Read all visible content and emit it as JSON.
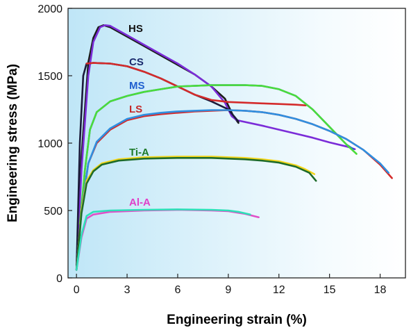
{
  "chart_data": {
    "type": "line",
    "xlabel": "Engineering strain (%)",
    "ylabel": "Engineering stress (MPa)",
    "xlim": [
      -0.5,
      19.5
    ],
    "ylim": [
      0,
      2000
    ],
    "xticks": [
      0,
      3,
      6,
      9,
      12,
      15,
      18
    ],
    "yticks": [
      0,
      500,
      1000,
      1500,
      2000
    ],
    "grid": false,
    "background": "gradient light-blue (left) to white (right)",
    "series": [
      {
        "name": "HS",
        "label_color": "#111111",
        "curves": [
          {
            "color": "#1c1c1c",
            "points": [
              [
                0,
                60
              ],
              [
                0.3,
                900
              ],
              [
                0.7,
                1600
              ],
              [
                1.0,
                1780
              ],
              [
                1.3,
                1860
              ],
              [
                1.6,
                1875
              ],
              [
                2.0,
                1860
              ],
              [
                3.0,
                1790
              ],
              [
                4.0,
                1720
              ],
              [
                5.0,
                1650
              ],
              [
                6.0,
                1580
              ],
              [
                7.0,
                1510
              ],
              [
                8.0,
                1420
              ],
              [
                8.8,
                1330
              ],
              [
                9.3,
                1200
              ],
              [
                9.6,
                1150
              ]
            ]
          },
          {
            "color": "#7b2cd8",
            "points": [
              [
                0,
                60
              ],
              [
                0.3,
                800
              ],
              [
                0.7,
                1500
              ],
              [
                1.0,
                1750
              ],
              [
                1.4,
                1860
              ],
              [
                1.7,
                1875
              ],
              [
                2.0,
                1870
              ],
              [
                3.0,
                1800
              ],
              [
                4.0,
                1730
              ],
              [
                5.0,
                1660
              ],
              [
                6.0,
                1590
              ],
              [
                7.0,
                1510
              ],
              [
                8.0,
                1420
              ],
              [
                8.8,
                1300
              ],
              [
                9.2,
                1200
              ],
              [
                9.5,
                1170
              ],
              [
                11.0,
                1130
              ],
              [
                12.0,
                1100
              ],
              [
                13.0,
                1070
              ],
              [
                14.0,
                1040
              ],
              [
                15.0,
                1005
              ],
              [
                16.0,
                975
              ],
              [
                16.5,
                955
              ]
            ]
          }
        ]
      },
      {
        "name": "CS",
        "label_color": "#1a2a6c",
        "curves": [
          {
            "color": "#1a1a3a",
            "points": [
              [
                0,
                60
              ],
              [
                0.2,
                1000
              ],
              [
                0.4,
                1500
              ],
              [
                0.6,
                1590
              ],
              [
                1.0,
                1595
              ],
              [
                2.0,
                1590
              ],
              [
                3.0,
                1570
              ],
              [
                4.0,
                1530
              ],
              [
                5.0,
                1480
              ],
              [
                6.0,
                1420
              ],
              [
                7.0,
                1360
              ],
              [
                8.0,
                1310
              ],
              [
                9.0,
                1250
              ],
              [
                9.6,
                1160
              ]
            ]
          },
          {
            "color": "#d42b2b",
            "points": [
              [
                0.6,
                1590
              ],
              [
                1.0,
                1595
              ],
              [
                2.0,
                1590
              ],
              [
                3.0,
                1570
              ],
              [
                4.0,
                1530
              ],
              [
                5.0,
                1480
              ],
              [
                6.0,
                1420
              ],
              [
                7.0,
                1360
              ],
              [
                8.0,
                1320
              ],
              [
                9.0,
                1305
              ],
              [
                10.0,
                1300
              ],
              [
                11.0,
                1295
              ],
              [
                12.0,
                1290
              ],
              [
                13.0,
                1285
              ],
              [
                13.6,
                1280
              ]
            ]
          }
        ]
      },
      {
        "name": "MS",
        "label_color": "#1f5fd0",
        "curves": [
          {
            "color": "#2b5bd8",
            "points": [
              [
                0,
                60
              ],
              [
                0.3,
                500
              ],
              [
                0.5,
                800
              ],
              [
                0.8,
                1100
              ],
              [
                1.2,
                1230
              ],
              [
                2.0,
                1310
              ],
              [
                3.0,
                1350
              ],
              [
                4.0,
                1380
              ],
              [
                5.0,
                1400
              ],
              [
                6.0,
                1420
              ],
              [
                7.0,
                1425
              ],
              [
                8.0,
                1430
              ],
              [
                9.0,
                1430
              ],
              [
                10.0,
                1430
              ],
              [
                11.0,
                1425
              ],
              [
                12.0,
                1400
              ],
              [
                13.0,
                1350
              ],
              [
                14.0,
                1250
              ],
              [
                15.0,
                1120
              ],
              [
                16.0,
                990
              ],
              [
                16.4,
                955
              ]
            ]
          },
          {
            "color": "#4bdc3a",
            "points": [
              [
                0.2,
                400
              ],
              [
                0.5,
                800
              ],
              [
                0.8,
                1100
              ],
              [
                1.2,
                1230
              ],
              [
                2.0,
                1310
              ],
              [
                3.0,
                1350
              ],
              [
                4.0,
                1380
              ],
              [
                5.0,
                1400
              ],
              [
                6.0,
                1420
              ],
              [
                7.0,
                1425
              ],
              [
                8.0,
                1430
              ],
              [
                9.0,
                1430
              ],
              [
                10.0,
                1430
              ],
              [
                11.0,
                1425
              ],
              [
                12.0,
                1400
              ],
              [
                13.0,
                1350
              ],
              [
                14.0,
                1250
              ],
              [
                15.0,
                1120
              ],
              [
                16.0,
                990
              ],
              [
                16.6,
                920
              ]
            ]
          }
        ]
      },
      {
        "name": "LS",
        "label_color": "#c42a2a",
        "curves": [
          {
            "color": "#d42b2b",
            "points": [
              [
                0,
                60
              ],
              [
                0.3,
                500
              ],
              [
                0.7,
                850
              ],
              [
                1.2,
                1000
              ],
              [
                2.0,
                1100
              ],
              [
                3.0,
                1170
              ],
              [
                4.0,
                1200
              ],
              [
                5.0,
                1215
              ],
              [
                6.0,
                1225
              ],
              [
                7.0,
                1235
              ],
              [
                8.0,
                1240
              ],
              [
                9.0,
                1245
              ],
              [
                10.0,
                1240
              ],
              [
                11.0,
                1230
              ],
              [
                12.0,
                1210
              ],
              [
                13.0,
                1180
              ],
              [
                14.0,
                1140
              ],
              [
                15.0,
                1090
              ],
              [
                16.0,
                1030
              ],
              [
                17.0,
                950
              ],
              [
                18.0,
                840
              ],
              [
                18.7,
                740
              ]
            ]
          },
          {
            "color": "#2f8fe0",
            "points": [
              [
                0,
                60
              ],
              [
                0.3,
                500
              ],
              [
                0.7,
                850
              ],
              [
                1.2,
                1010
              ],
              [
                2.0,
                1110
              ],
              [
                3.0,
                1180
              ],
              [
                4.0,
                1210
              ],
              [
                5.0,
                1225
              ],
              [
                6.0,
                1235
              ],
              [
                7.0,
                1240
              ],
              [
                8.0,
                1245
              ],
              [
                9.0,
                1245
              ],
              [
                10.0,
                1240
              ],
              [
                11.0,
                1230
              ],
              [
                12.0,
                1210
              ],
              [
                13.0,
                1180
              ],
              [
                14.0,
                1140
              ],
              [
                15.0,
                1090
              ],
              [
                16.0,
                1030
              ],
              [
                17.0,
                950
              ],
              [
                18.0,
                850
              ],
              [
                18.5,
                780
              ]
            ]
          }
        ]
      },
      {
        "name": "Ti-A",
        "label_color": "#1e7a2a",
        "curves": [
          {
            "color": "#f2d51a",
            "points": [
              [
                0,
                60
              ],
              [
                0.3,
                500
              ],
              [
                0.6,
                720
              ],
              [
                1.0,
                800
              ],
              [
                1.5,
                850
              ],
              [
                2.5,
                880
              ],
              [
                4.0,
                895
              ],
              [
                6.0,
                900
              ],
              [
                8.0,
                900
              ],
              [
                10.0,
                890
              ],
              [
                11.0,
                880
              ],
              [
                12.0,
                865
              ],
              [
                13.0,
                835
              ],
              [
                13.5,
                810
              ],
              [
                14.1,
                770
              ]
            ]
          },
          {
            "color": "#1e6b2a",
            "points": [
              [
                0,
                60
              ],
              [
                0.3,
                480
              ],
              [
                0.6,
                700
              ],
              [
                1.0,
                790
              ],
              [
                1.5,
                840
              ],
              [
                2.5,
                870
              ],
              [
                4.0,
                885
              ],
              [
                6.0,
                890
              ],
              [
                8.0,
                890
              ],
              [
                10.0,
                880
              ],
              [
                11.0,
                870
              ],
              [
                12.0,
                855
              ],
              [
                13.0,
                825
              ],
              [
                13.8,
                780
              ],
              [
                14.2,
                720
              ]
            ]
          }
        ]
      },
      {
        "name": "Al-A",
        "label_color": "#e040c8",
        "curves": [
          {
            "color": "#e04fc8",
            "points": [
              [
                0,
                60
              ],
              [
                0.3,
                300
              ],
              [
                0.6,
                440
              ],
              [
                1.0,
                470
              ],
              [
                2.0,
                490
              ],
              [
                4.0,
                500
              ],
              [
                6.0,
                505
              ],
              [
                8.0,
                500
              ],
              [
                9.0,
                495
              ],
              [
                10.0,
                475
              ],
              [
                10.8,
                450
              ]
            ]
          },
          {
            "color": "#2ee0b8",
            "points": [
              [
                0,
                60
              ],
              [
                0.3,
                320
              ],
              [
                0.6,
                460
              ],
              [
                1.0,
                490
              ],
              [
                2.0,
                500
              ],
              [
                4.0,
                505
              ],
              [
                6.0,
                508
              ],
              [
                8.0,
                505
              ],
              [
                9.0,
                500
              ],
              [
                9.6,
                490
              ],
              [
                10.3,
                470
              ]
            ]
          }
        ]
      }
    ]
  }
}
